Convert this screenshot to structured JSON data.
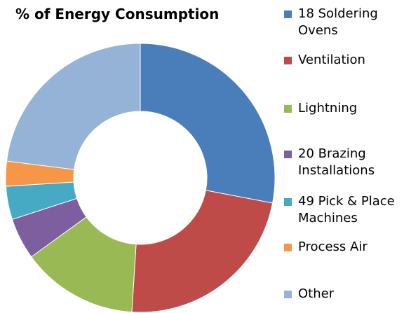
{
  "chart_data": {
    "type": "donut",
    "title": "% of Energy Consumption",
    "categories": [
      "18 Soldering Ovens",
      "Ventilation",
      "Lightning",
      "20 Brazing Installations",
      "49 Pick & Place Machines",
      "Process Air",
      "Other"
    ],
    "values": [
      28,
      23,
      14,
      5,
      4,
      3,
      23
    ],
    "colors": [
      "#4a7ebb",
      "#be4b48",
      "#98b954",
      "#7d5fa0",
      "#46aac5",
      "#f79646",
      "#95b3d7"
    ],
    "legend": "right"
  }
}
